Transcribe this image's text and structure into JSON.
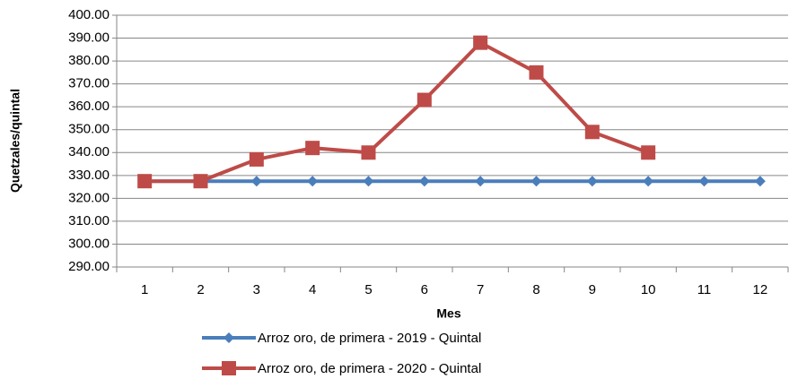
{
  "chart_data": {
    "type": "line",
    "x_label": "Mes",
    "y_label": "Quetzales/quintal",
    "categories": [
      "1",
      "2",
      "3",
      "4",
      "5",
      "6",
      "7",
      "8",
      "9",
      "10",
      "11",
      "12"
    ],
    "series": [
      {
        "name": "Arroz oro, de primera - 2019 - Quintal",
        "color": "#4a7ebb",
        "marker": "diamond",
        "values": [
          327.5,
          327.5,
          327.5,
          327.5,
          327.5,
          327.5,
          327.5,
          327.5,
          327.5,
          327.5,
          327.5,
          327.5
        ]
      },
      {
        "name": "Arroz oro, de primera - 2020 - Quintal",
        "color": "#be4b48",
        "marker": "square",
        "values": [
          327.5,
          327.5,
          337,
          342,
          340,
          363,
          388,
          375,
          349,
          340,
          null,
          null
        ]
      }
    ],
    "ylim": [
      290,
      400
    ],
    "yticks": [
      {
        "value": 290,
        "label": "290.00"
      },
      {
        "value": 300,
        "label": "300.00"
      },
      {
        "value": 310,
        "label": "310.00"
      },
      {
        "value": 320,
        "label": "320.00"
      },
      {
        "value": 330,
        "label": "330.00"
      },
      {
        "value": 340,
        "label": "340.00"
      },
      {
        "value": 350,
        "label": "350.00"
      },
      {
        "value": 360,
        "label": "360.00"
      },
      {
        "value": 370,
        "label": "370.00"
      },
      {
        "value": 380,
        "label": "380.00"
      },
      {
        "value": 390,
        "label": "390.00"
      },
      {
        "value": 400,
        "label": "400.00"
      }
    ],
    "grid": true
  }
}
